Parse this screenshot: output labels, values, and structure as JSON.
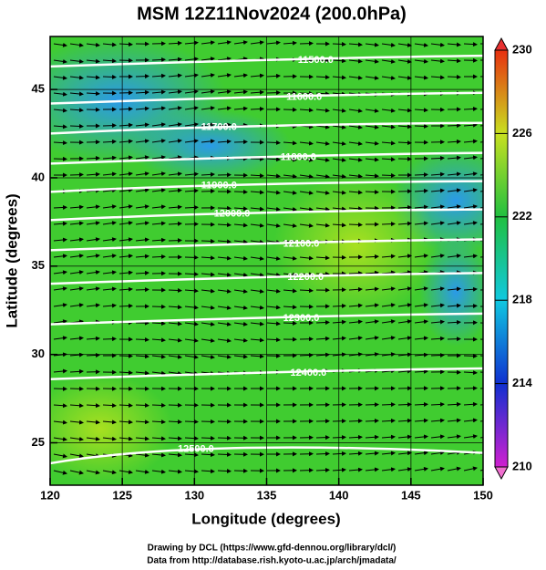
{
  "map": {
    "title": "MSM 12Z11Nov2024 (200.0hPa)",
    "xlabel": "Longitude (degrees)",
    "ylabel": "Latitude  (degrees)",
    "xlim": [
      120,
      150
    ],
    "ylim": [
      22.6,
      48
    ],
    "xticks": [
      120,
      125,
      130,
      135,
      140,
      145,
      150
    ],
    "yticks": [
      25,
      30,
      35,
      40,
      45
    ],
    "contours": [
      {
        "level": {
          "value": 11500,
          "label": "11500.0"
        },
        "lon": 138.4,
        "lat": 46.5
      },
      {
        "level": {
          "value": 11600,
          "label": "11600.0"
        },
        "lon": 137.6,
        "lat": 44.4
      },
      {
        "level": {
          "value": 11700,
          "label": "11700.0"
        },
        "lon": 131.7,
        "lat": 42.7
      },
      {
        "level": {
          "value": 11800,
          "label": "11800.0"
        },
        "lon": 137.2,
        "lat": 41.0
      },
      {
        "level": {
          "value": 11900,
          "label": "11900.0"
        },
        "lon": 131.7,
        "lat": 39.4
      },
      {
        "level": {
          "value": 12000,
          "label": "12000.0"
        },
        "lon": 132.6,
        "lat": 37.8
      },
      {
        "level": {
          "value": 12100,
          "label": "12100.0"
        },
        "lon": 137.4,
        "lat": 36.1
      },
      {
        "level": {
          "value": 12200,
          "label": "12200.0"
        },
        "lon": 137.7,
        "lat": 34.2
      },
      {
        "level": {
          "value": 12300,
          "label": "12300.0"
        },
        "lon": 137.4,
        "lat": 31.9
      },
      {
        "level": {
          "value": 12400,
          "label": "12400.0"
        },
        "lon": 137.9,
        "lat": 28.8
      },
      {
        "level": {
          "value": 12500,
          "label": "12500.0"
        },
        "lon": 130.1,
        "lat": 24.0
      }
    ],
    "colorbar": {
      "range": [
        210,
        230
      ],
      "ticks": [
        210,
        214,
        218,
        222,
        226,
        230
      ]
    },
    "footer": [
      "Drawing by DCL (https://www.gfd-dennou.org/library/dcl/)",
      "Data from http://database.rish.kyoto-u.ac.jp/arch/jmadata/"
    ]
  }
}
